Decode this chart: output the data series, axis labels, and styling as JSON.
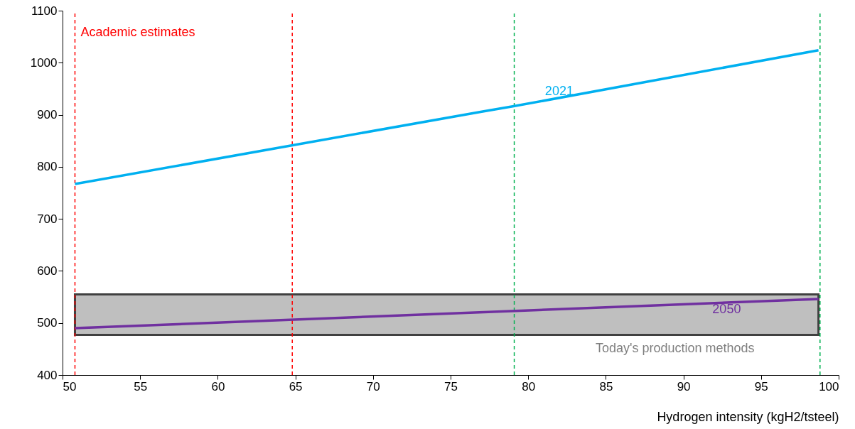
{
  "chart_data": {
    "type": "line",
    "xlabel": "Hydrogen intensity (kgH2/tsteel)",
    "xlim": [
      50,
      100
    ],
    "xticks": [
      50,
      55,
      60,
      65,
      70,
      75,
      80,
      85,
      90,
      95,
      100
    ],
    "ylim": [
      400,
      1100
    ],
    "yticks": [
      400,
      500,
      600,
      700,
      800,
      900,
      1000,
      1100
    ],
    "grid": false,
    "marker": "none",
    "line_style": "solid",
    "series": [
      {
        "name": "2021",
        "color": "#00b0f0",
        "x": [
          50.8,
          77,
          79,
          98.7
        ],
        "values": [
          767,
          906,
          916,
          1024
        ]
      },
      {
        "name": "2050",
        "color": "#7030a0",
        "x": [
          50.8,
          98.7
        ],
        "values": [
          490,
          546
        ]
      }
    ],
    "bands": [
      {
        "axis": "y",
        "from": 477,
        "to": 555,
        "label": "Today's production methods",
        "color": "#bfbfbf"
      }
    ],
    "ref_lines": [
      {
        "axis": "x",
        "value": 50.8,
        "color": "#ff0000",
        "line_style": "dashed"
      },
      {
        "axis": "x",
        "value": 64.8,
        "color": "#ff0000",
        "line_style": "dashed"
      },
      {
        "axis": "x",
        "value": 79.1,
        "color": "#00b050",
        "line_style": "dashed"
      },
      {
        "axis": "x",
        "value": 98.8,
        "color": "#00b050",
        "line_style": "dashed"
      }
    ],
    "annotations": [
      "Academic estimates"
    ]
  }
}
